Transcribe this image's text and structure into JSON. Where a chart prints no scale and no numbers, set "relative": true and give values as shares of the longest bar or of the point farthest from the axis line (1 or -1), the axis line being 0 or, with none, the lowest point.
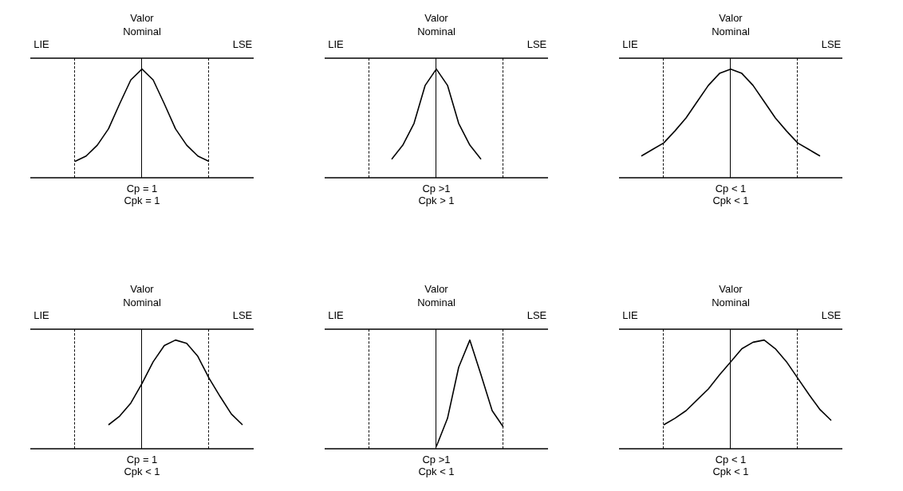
{
  "chart_data": [
    {
      "type": "line",
      "relative": true,
      "marker": "none",
      "categories": [
        null,
        null,
        null,
        null,
        null,
        null,
        null,
        null,
        null,
        null,
        null,
        null,
        null,
        null,
        null,
        null,
        null,
        null,
        null,
        null,
        null
      ],
      "series": [
        {
          "color": "#000000",
          "values": [
            null,
            null,
            null,
            null,
            0.15,
            0.2,
            0.3,
            0.45,
            0.68,
            0.9,
            1,
            0.9,
            0.68,
            0.45,
            0.3,
            0.2,
            0.15,
            null,
            null,
            null,
            null
          ]
        }
      ],
      "annotations": [
        "LIE",
        "Valor Nominal",
        "LSE",
        "Cp = 1",
        "Cpk = 1"
      ]
    },
    {
      "type": "line",
      "relative": true,
      "marker": "none",
      "categories": [
        null,
        null,
        null,
        null,
        null,
        null,
        null,
        null,
        null,
        null,
        null,
        null,
        null,
        null,
        null,
        null,
        null,
        null,
        null,
        null,
        null
      ],
      "series": [
        {
          "color": "#000000",
          "values": [
            null,
            null,
            null,
            null,
            null,
            null,
            0.17,
            0.3,
            0.5,
            0.85,
            1,
            0.85,
            0.5,
            0.3,
            0.17,
            null,
            null,
            null,
            null,
            null,
            null
          ]
        }
      ],
      "annotations": [
        "LIE",
        "Valor Nominal",
        "LSE",
        "Cp >1",
        "Cpk > 1"
      ]
    },
    {
      "type": "line",
      "relative": true,
      "marker": "none",
      "categories": [
        null,
        null,
        null,
        null,
        null,
        null,
        null,
        null,
        null,
        null,
        null,
        null,
        null,
        null,
        null,
        null,
        null,
        null,
        null,
        null,
        null
      ],
      "series": [
        {
          "color": "#000000",
          "values": [
            null,
            null,
            0.2,
            0.26,
            0.32,
            0.43,
            0.55,
            0.7,
            0.85,
            0.96,
            1,
            0.96,
            0.85,
            0.7,
            0.55,
            0.43,
            0.32,
            0.26,
            0.2,
            null,
            null
          ]
        }
      ],
      "annotations": [
        "LIE",
        "Valor Nominal",
        "LSE",
        "Cp < 1",
        "Cpk < 1"
      ]
    },
    {
      "type": "line",
      "relative": true,
      "marker": "none",
      "categories": [
        null,
        null,
        null,
        null,
        null,
        null,
        null,
        null,
        null,
        null,
        null,
        null,
        null,
        null,
        null,
        null,
        null,
        null,
        null,
        null,
        null
      ],
      "series": [
        {
          "color": "#000000",
          "values": [
            null,
            null,
            null,
            null,
            null,
            null,
            null,
            0.22,
            0.3,
            0.42,
            0.6,
            0.8,
            0.95,
            1,
            0.97,
            0.85,
            0.65,
            0.48,
            0.32,
            0.22,
            null
          ]
        }
      ],
      "annotations": [
        "LIE",
        "Valor Nominal",
        "LSE",
        "Cp = 1",
        "Cpk < 1"
      ]
    },
    {
      "type": "line",
      "relative": true,
      "marker": "none",
      "categories": [
        null,
        null,
        null,
        null,
        null,
        null,
        null,
        null,
        null,
        null,
        null,
        null,
        null,
        null,
        null,
        null,
        null,
        null,
        null,
        null,
        null
      ],
      "series": [
        {
          "color": "#000000",
          "values": [
            null,
            null,
            null,
            null,
            null,
            null,
            null,
            null,
            null,
            null,
            0.02,
            0.28,
            0.75,
            1,
            0.68,
            0.35,
            0.2,
            null,
            null,
            null,
            null
          ]
        }
      ],
      "annotations": [
        "LIE",
        "Valor Nominal",
        "LSE",
        "Cp >1",
        "Cpk < 1"
      ]
    },
    {
      "type": "line",
      "relative": true,
      "marker": "none",
      "categories": [
        null,
        null,
        null,
        null,
        null,
        null,
        null,
        null,
        null,
        null,
        null,
        null,
        null,
        null,
        null,
        null,
        null,
        null,
        null,
        null,
        null
      ],
      "series": [
        {
          "color": "#000000",
          "values": [
            null,
            null,
            null,
            null,
            0.22,
            0.28,
            0.35,
            0.45,
            0.55,
            0.68,
            0.8,
            0.92,
            0.98,
            1,
            0.92,
            0.8,
            0.65,
            0.5,
            0.36,
            0.26,
            null
          ]
        }
      ],
      "annotations": [
        "LIE",
        "Valor Nominal",
        "LSE",
        "Cp < 1",
        "Cpk < 1"
      ]
    }
  ]
}
